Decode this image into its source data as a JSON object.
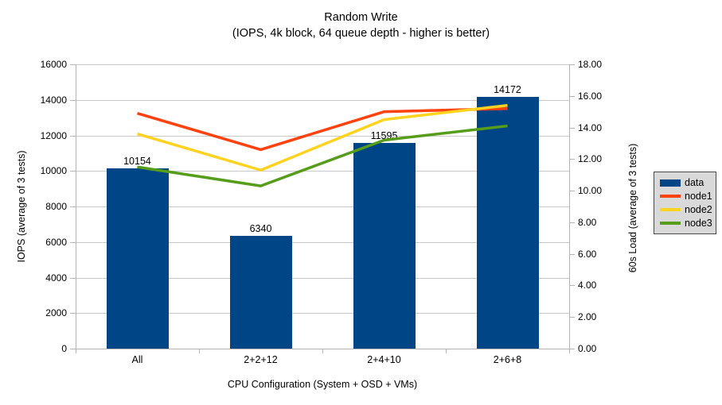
{
  "chart_data": {
    "type": "combo-bar-line",
    "title": "Random Write",
    "subtitle": "(IOPS, 4k block, 64 queue depth - higher is better)",
    "categories": [
      "All",
      "2+2+12",
      "2+4+10",
      "2+6+8"
    ],
    "bar_series": {
      "name": "data",
      "color": "#004586",
      "axis": "left",
      "values": [
        10154,
        6340,
        11595,
        14172
      ]
    },
    "line_series": [
      {
        "name": "node1",
        "color": "#ff420e",
        "axis": "right",
        "values": [
          14.9,
          12.6,
          15.0,
          15.2
        ]
      },
      {
        "name": "node2",
        "color": "#ffd320",
        "axis": "right",
        "values": [
          13.6,
          11.3,
          14.5,
          15.4
        ]
      },
      {
        "name": "node3",
        "color": "#579d1c",
        "axis": "right",
        "values": [
          11.5,
          10.3,
          13.2,
          14.1
        ]
      }
    ],
    "left_axis": {
      "title": "IOPS (average of 3 tests)",
      "min": 0,
      "max": 16000,
      "step": 2000,
      "tick_labels": [
        "0",
        "2000",
        "4000",
        "6000",
        "8000",
        "10000",
        "12000",
        "14000",
        "16000"
      ]
    },
    "right_axis": {
      "title": "60s Load (average of 3 tests)",
      "min": 0,
      "max": 18,
      "step": 2,
      "tick_labels": [
        "0.00",
        "2.00",
        "4.00",
        "6.00",
        "8.00",
        "10.00",
        "12.00",
        "14.00",
        "16.00",
        "18.00"
      ]
    },
    "x_axis": {
      "title": "CPU Configuration (System + OSD + VMs)"
    },
    "legend": {
      "position": "right",
      "items": [
        "data",
        "node1",
        "node2",
        "node3"
      ]
    },
    "grid": "horizontal-only",
    "colors": {
      "gridline": "#c9c9c9",
      "axis": "#b3b3b3",
      "legend_bg": "#d9d9d9",
      "legend_border": "#4a4a4a",
      "text": "#000000"
    }
  }
}
